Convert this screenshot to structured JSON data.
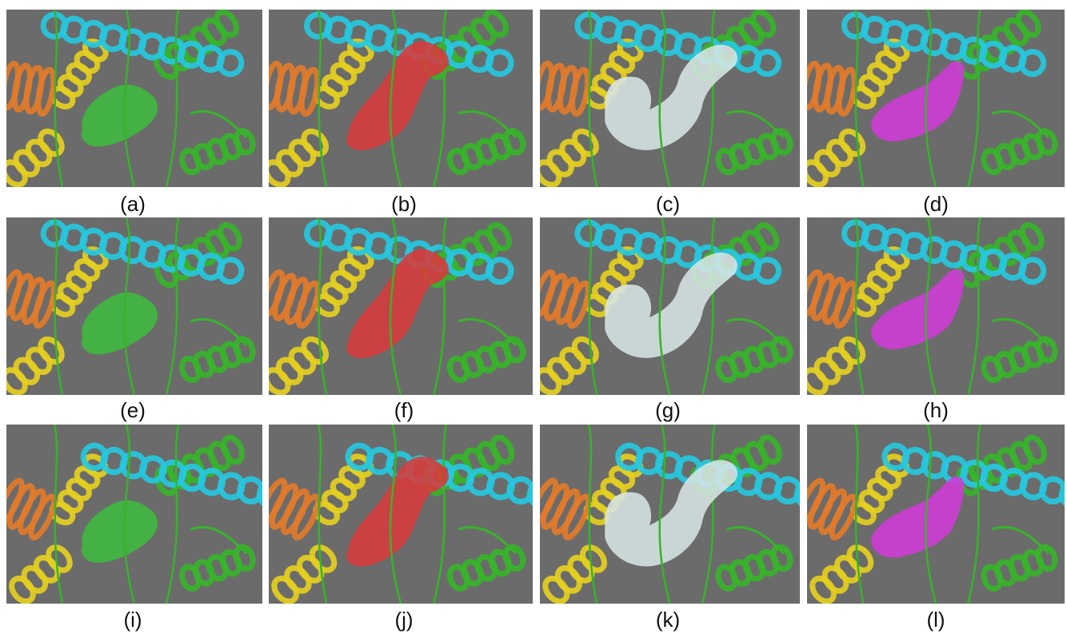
{
  "panels": [
    {
      "label": "(a)",
      "pocket_color": "#3dbb3d"
    },
    {
      "label": "(b)",
      "pocket_color": "#d83a3a"
    },
    {
      "label": "(c)",
      "pocket_color": "#d7e5e4"
    },
    {
      "label": "(d)",
      "pocket_color": "#d23ad8"
    },
    {
      "label": "(e)",
      "pocket_color": "#3dbb3d"
    },
    {
      "label": "(f)",
      "pocket_color": "#d83a3a"
    },
    {
      "label": "(g)",
      "pocket_color": "#d7e5e4"
    },
    {
      "label": "(h)",
      "pocket_color": "#d23ad8"
    },
    {
      "label": "(i)",
      "pocket_color": "#3dbb3d"
    },
    {
      "label": "(j)",
      "pocket_color": "#d83a3a"
    },
    {
      "label": "(k)",
      "pocket_color": "#d7e5e4"
    },
    {
      "label": "(l)",
      "pocket_color": "#d23ad8"
    }
  ],
  "colors": {
    "background": "#6b6b6b",
    "helix_cyan": "#26c8de",
    "helix_orange": "#e27b2a",
    "helix_yellow": "#e5cf1f",
    "ribbon_green": "#37b42a"
  }
}
